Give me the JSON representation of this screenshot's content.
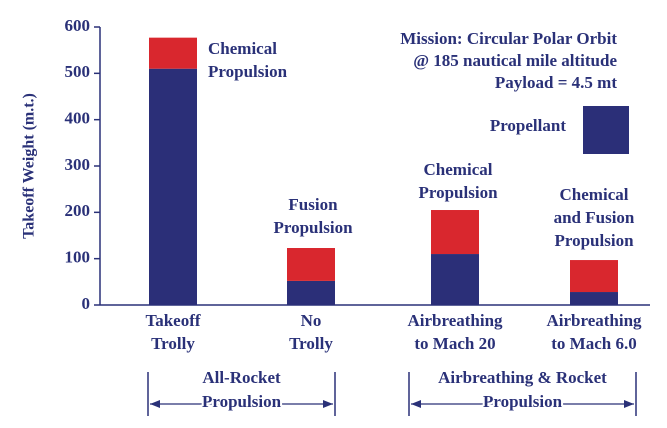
{
  "chart_data": {
    "type": "stacked-bar",
    "y_label": "Takeoff Weight (m.t.)",
    "categories": [
      [
        "Takeoff",
        "Trolly"
      ],
      [
        "No",
        "Trolly"
      ],
      [
        "Airbreathing",
        "to Mach 20"
      ],
      [
        "Airbreathing",
        "to Mach 6.0"
      ]
    ],
    "series": [
      {
        "name": "Propellant",
        "color": "#2b2f78",
        "values": [
          510,
          52,
          110,
          28
        ]
      },
      {
        "color": "#d9272e",
        "values": [
          67,
          71,
          95,
          69
        ]
      }
    ],
    "ylim": [
      0,
      600
    ],
    "yticks": [
      0,
      100,
      200,
      300,
      400,
      500,
      600
    ],
    "annotations": [
      [
        "Chemical",
        "Propulsion"
      ],
      [
        "Fusion",
        "Propulsion"
      ],
      [
        "Chemical",
        "Propulsion"
      ],
      [
        "Chemical",
        "and Fusion",
        "Propulsion"
      ]
    ],
    "mission": [
      "Mission: Circular Polar Orbit",
      "@ 185 nautical mile altitude",
      "Payload = 4.5 mt"
    ],
    "groups": [
      [
        "All-Rocket",
        "Propulsion"
      ],
      [
        "Airbreathing & Rocket",
        "Propulsion"
      ]
    ]
  }
}
